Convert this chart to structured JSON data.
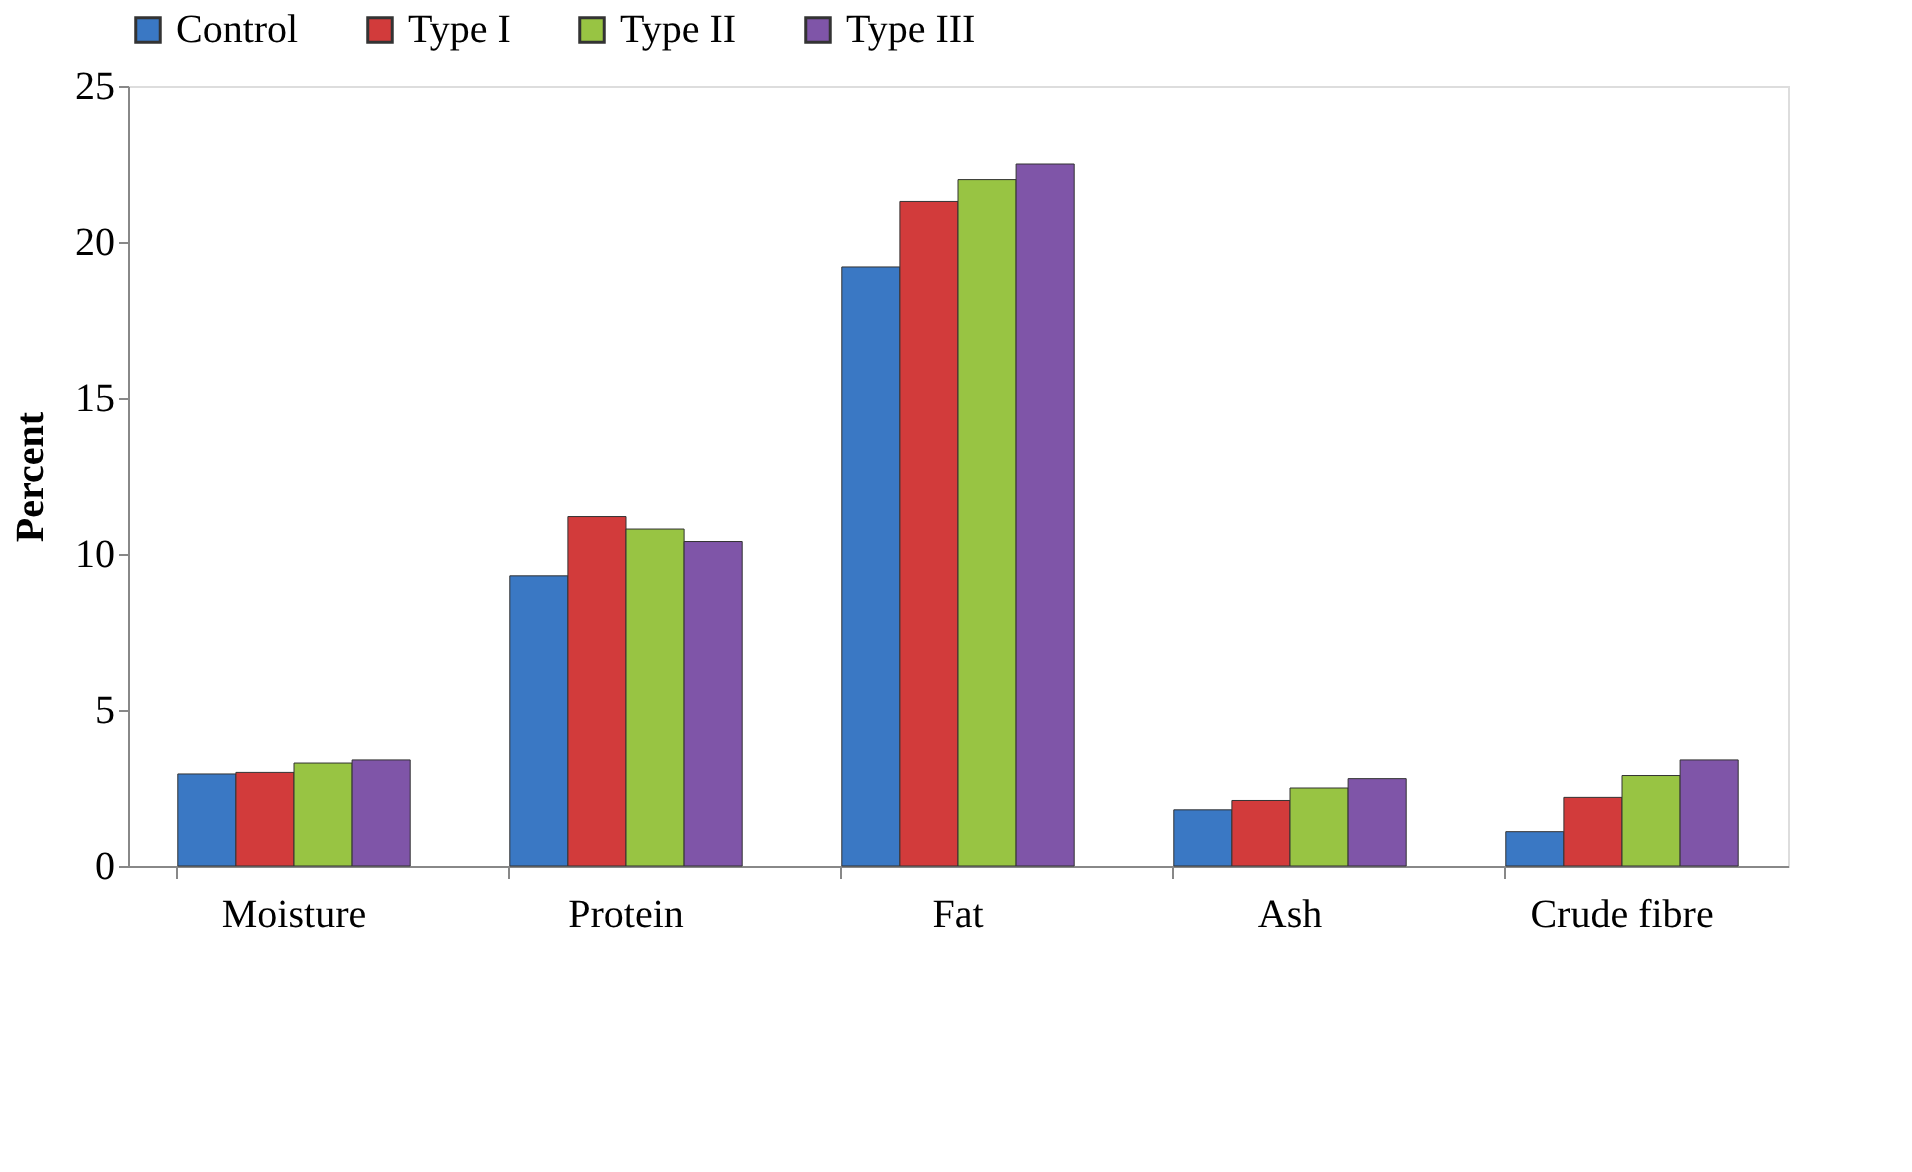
{
  "chart_data": {
    "type": "bar",
    "ylabel": "Percent",
    "categories": [
      "Moisture",
      "Protein",
      "Fat",
      "Ash",
      "Crude fibre"
    ],
    "series": [
      {
        "name": "Control",
        "color": "#3a78c4",
        "values": [
          2.95,
          9.3,
          19.2,
          1.8,
          1.1
        ]
      },
      {
        "name": "Type I",
        "color": "#d23b3b",
        "values": [
          3.0,
          11.2,
          21.3,
          2.1,
          2.2
        ]
      },
      {
        "name": "Type II",
        "color": "#98c443",
        "values": [
          3.3,
          10.8,
          22.0,
          2.5,
          2.9
        ]
      },
      {
        "name": "Type III",
        "color": "#7f55a8",
        "values": [
          3.4,
          10.4,
          22.5,
          2.8,
          3.4
        ]
      }
    ],
    "ylim": [
      0,
      25
    ],
    "yticks": [
      0,
      5,
      10,
      15,
      20,
      25
    ],
    "grid": false,
    "legend": "top"
  }
}
